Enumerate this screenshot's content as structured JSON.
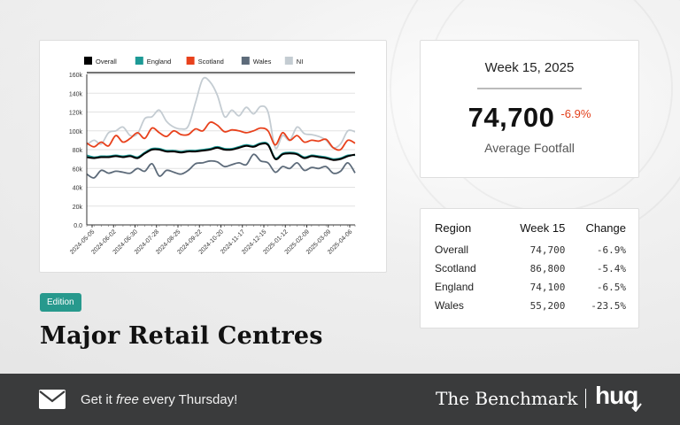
{
  "chart_data": {
    "type": "line",
    "ylim": [
      0,
      160000
    ],
    "yticks": [
      "0.0",
      "20k",
      "40k",
      "60k",
      "80k",
      "100k",
      "120k",
      "140k",
      "160k"
    ],
    "ytick_values": [
      0,
      20000,
      40000,
      60000,
      80000,
      100000,
      120000,
      140000,
      160000
    ],
    "xtick_labels": [
      "2024-05-05",
      "2024-06-02",
      "2024-06-30",
      "2024-07-28",
      "2024-08-25",
      "2024-09-22",
      "2024-10-20",
      "2024-11-17",
      "2024-12-15",
      "2025-01-12",
      "2025-02-09",
      "2025-03-09",
      "2025-04-06"
    ],
    "legend_position": "top",
    "grid": true,
    "series": [
      {
        "name": "Overall",
        "color": "#000000",
        "values": [
          72000,
          71000,
          72000,
          72000,
          73000,
          72000,
          73000,
          71000,
          76000,
          80000,
          80000,
          78000,
          78000,
          77000,
          78000,
          78000,
          79000,
          80000,
          82000,
          80000,
          80000,
          82000,
          84000,
          83000,
          86000,
          85000,
          70000,
          75000,
          76000,
          75000,
          71000,
          73000,
          72000,
          71000,
          69000,
          70000,
          73000,
          74700
        ]
      },
      {
        "name": "England",
        "color": "#1d9a96",
        "values": [
          74000,
          72000,
          73000,
          73000,
          74000,
          73000,
          74000,
          72000,
          77000,
          81000,
          81000,
          79000,
          79000,
          78000,
          79000,
          79000,
          80000,
          81000,
          83000,
          81000,
          81000,
          83000,
          85000,
          84000,
          87000,
          86000,
          71000,
          76000,
          77000,
          76000,
          72000,
          74000,
          73000,
          72000,
          70000,
          71000,
          74000,
          74100
        ]
      },
      {
        "name": "Scotland",
        "color": "#e8411c",
        "values": [
          87000,
          83000,
          88000,
          84000,
          95000,
          88000,
          92000,
          98000,
          92000,
          103000,
          98000,
          94000,
          100000,
          96000,
          96000,
          102000,
          100000,
          109000,
          106000,
          99000,
          101000,
          100000,
          98000,
          100000,
          103000,
          100000,
          85000,
          98000,
          90000,
          95000,
          88000,
          90000,
          89000,
          91000,
          82000,
          80000,
          90000,
          86800
        ]
      },
      {
        "name": "Wales",
        "color": "#5d6b7a",
        "values": [
          54000,
          50000,
          58000,
          55000,
          57000,
          56000,
          55000,
          60000,
          57000,
          65000,
          52000,
          58000,
          56000,
          54000,
          58000,
          65000,
          66000,
          68000,
          67000,
          62000,
          64000,
          66000,
          64000,
          75000,
          68000,
          66000,
          56000,
          62000,
          60000,
          66000,
          58000,
          61000,
          60000,
          62000,
          55000,
          57000,
          66000,
          55200
        ]
      },
      {
        "name": "NI",
        "color": "#c4ccd2",
        "values": [
          85000,
          90000,
          86000,
          98000,
          100000,
          104000,
          95000,
          97000,
          113000,
          115000,
          122000,
          110000,
          104000,
          102000,
          105000,
          130000,
          155000,
          152000,
          138000,
          115000,
          122000,
          116000,
          125000,
          118000,
          126000,
          120000,
          82000,
          95000,
          90000,
          104000,
          97000,
          96000,
          94000,
          90000,
          82000,
          86000,
          100000,
          99000
        ]
      }
    ]
  },
  "week_card": {
    "title": "Week 15, 2025",
    "value": "74,700",
    "change": "-6.9%",
    "subtitle": "Average Footfall"
  },
  "table": {
    "headers": [
      "Region",
      "Week 15",
      "Change"
    ],
    "rows": [
      [
        "Overall",
        "74,700",
        "-6.9%"
      ],
      [
        "Scotland",
        "86,800",
        "-5.4%"
      ],
      [
        "England",
        "74,100",
        "-6.5%"
      ],
      [
        "Wales",
        "55,200",
        "-23.5%"
      ]
    ]
  },
  "edition_label": "Edition",
  "headline": "Major Retail Centres",
  "footer": {
    "text_before": "Get it ",
    "text_em": "free",
    "text_after": " every Thursday!",
    "brand": "The Benchmark",
    "logo": "huq"
  },
  "icons": {
    "mail": "mail-icon",
    "logo_mark": "check-icon"
  },
  "colors": {
    "accent": "#27998d",
    "negative": "#e2401c",
    "footer_bg": "#3a3b3c"
  }
}
